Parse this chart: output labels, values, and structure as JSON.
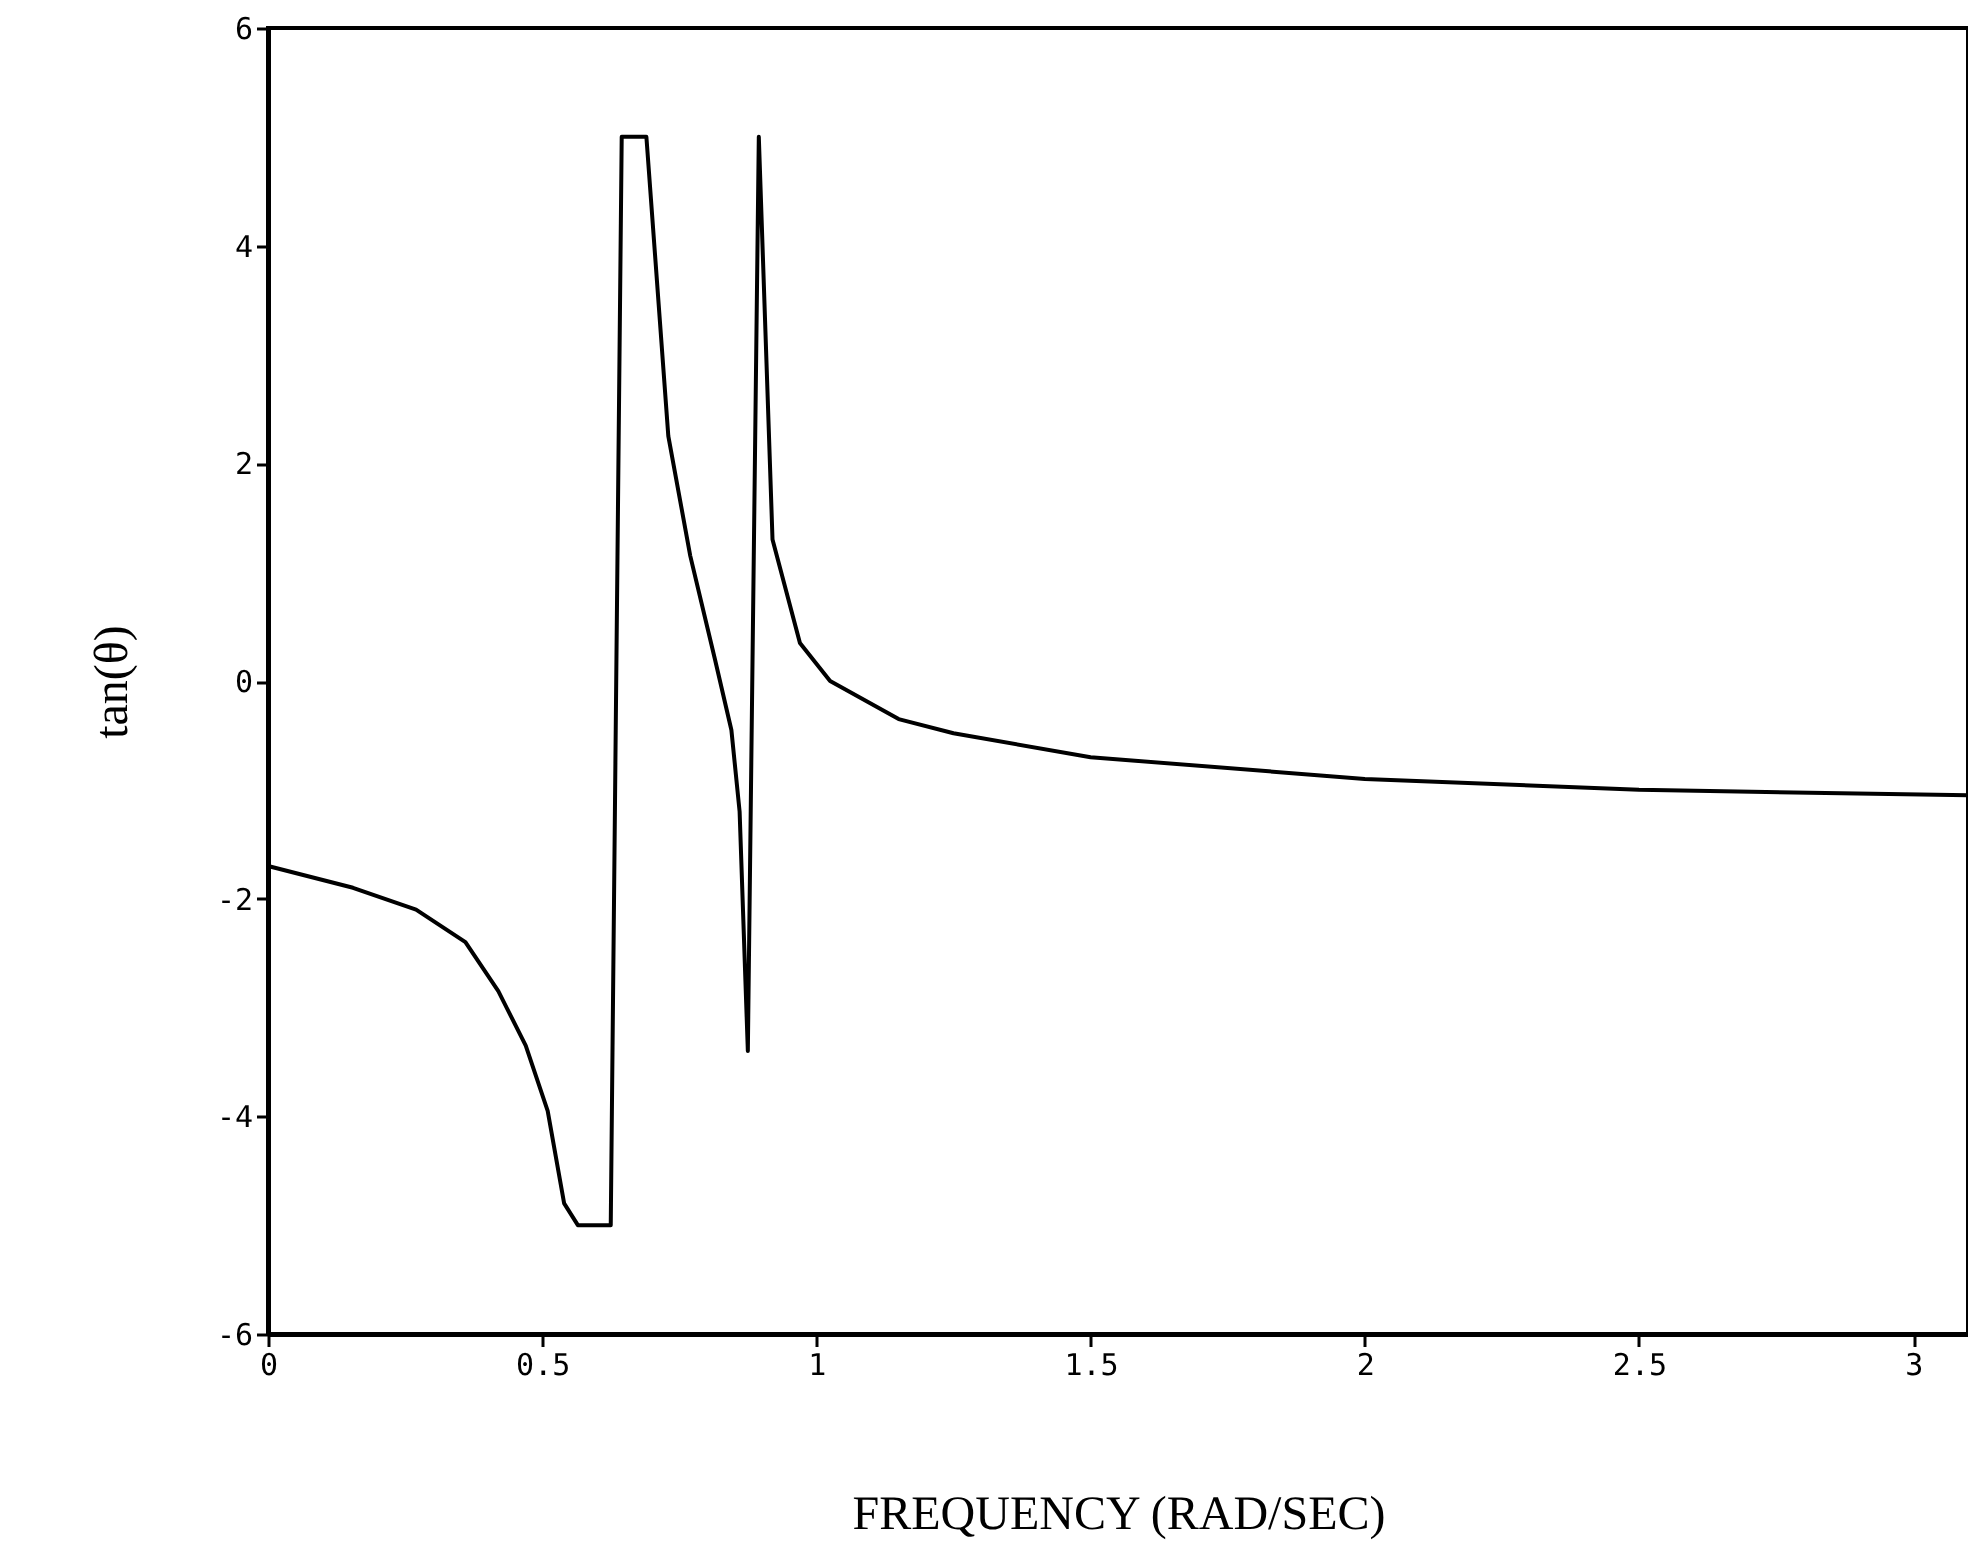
{
  "chart_data": {
    "type": "line",
    "xlabel": "FREQUENCY  (RAD/SEC)",
    "ylabel": "tan(θ)",
    "x": [
      0,
      0.155,
      0.27,
      0.36,
      0.42,
      0.47,
      0.51,
      0.54,
      0.565,
      0.625,
      0.645,
      0.69,
      0.73,
      0.77,
      0.815,
      0.845,
      0.86,
      0.875,
      0.895,
      0.92,
      0.97,
      1.025,
      1.15,
      1.25,
      1.5,
      2,
      2.5,
      3.1
    ],
    "series": [
      {
        "color": "#000000",
        "values": [
          -1.7,
          -1.9,
          -2.1,
          -2.4,
          -2.85,
          -3.35,
          -3.95,
          -4.8,
          -5,
          -5,
          5,
          5,
          2.25,
          1.15,
          0.2,
          -0.45,
          -1.2,
          -3.4,
          5,
          1.3,
          0.35,
          0.0,
          -0.35,
          -0.48,
          -0.7,
          -0.9,
          -1.0,
          -1.05
        ]
      }
    ],
    "xlim": [
      0,
      3.1
    ],
    "xticks": [
      0,
      0.5,
      1,
      1.5,
      2,
      2.5,
      3
    ],
    "ylim": [
      -6,
      6
    ],
    "yticks": [
      -6,
      -4,
      -2,
      0,
      2,
      4,
      6
    ],
    "grid": false,
    "marker": "none",
    "line_style": "solid"
  }
}
